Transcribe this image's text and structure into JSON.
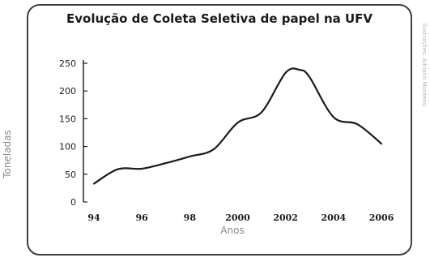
{
  "chart_data": {
    "type": "line",
    "title": "Evolução de Coleta Seletiva de papel na UFV",
    "xlabel": "Anos",
    "ylabel": "Toneladas",
    "x": [
      1994,
      1995,
      1996,
      1997,
      1998,
      1999,
      2000,
      2001,
      2002,
      2002.6,
      2003,
      2004,
      2005,
      2006
    ],
    "y": [
      33,
      59,
      60,
      70,
      82,
      95,
      143,
      162,
      233,
      238,
      225,
      153,
      140,
      105
    ],
    "xlim": [
      1994,
      2006
    ],
    "ylim": [
      0,
      250
    ],
    "x_ticks": [
      "94",
      "96",
      "98",
      "2000",
      "2002",
      "2004",
      "2006"
    ],
    "y_ticks": [
      "0",
      "50",
      "100",
      "150",
      "200",
      "250"
    ],
    "line_color": "#1a1a1a",
    "grid": false
  },
  "credit": "Ilustrações: Adriano Monteiro"
}
